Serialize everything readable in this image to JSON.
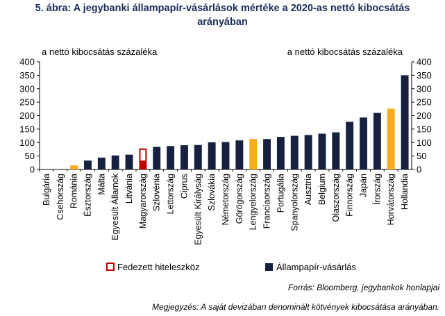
{
  "title_line1": "5. ábra: A jegybanki állampapír-vásárlások mértéke a 2020-as nettó kibocsátás",
  "title_line2": "arányában",
  "source": "Forrás: Bloomberg, jegybankok honlapjai",
  "note": "Megjegyzés: A saját devizában denominált kötvények kibocsátása arányában.",
  "chart_data": {
    "type": "bar",
    "ylabel_left": "a nettó kibocsátás százaléka",
    "ylabel_right": "a nettó kibocsátás százaléka",
    "ylim": [
      0,
      400
    ],
    "yticks": [
      0,
      50,
      100,
      150,
      200,
      250,
      300,
      350,
      400
    ],
    "grid": false,
    "legend_position": "bottom",
    "categories": [
      "Bulgária",
      "Csehország",
      "Románia",
      "Észtország",
      "Málta",
      "Egyesült Államok",
      "Litvánia",
      "Magyarország",
      "Szlovénia",
      "Lettország",
      "Ciprus",
      "Egyesült Királyság",
      "Szlovákia",
      "Németország",
      "Görögország",
      "Lengyelország",
      "Franciaország",
      "Portugália",
      "Spanyolország",
      "Ausztria",
      "Belgium",
      "Olaszország",
      "Finnország",
      "Japán",
      "Írország",
      "Horvátország",
      "Hollandia"
    ],
    "series": [
      {
        "name": "Állampapír-vásárlás",
        "values": [
          0,
          0,
          15,
          33,
          44,
          52,
          55,
          28,
          84,
          87,
          90,
          91,
          101,
          102,
          108,
          113,
          113,
          121,
          125,
          128,
          133,
          138,
          177,
          193,
          210,
          226,
          350
        ]
      },
      {
        "name": "Fedezett hiteleszköz",
        "values": [
          0,
          0,
          0,
          0,
          0,
          0,
          0,
          50,
          0,
          0,
          0,
          0,
          0,
          0,
          0,
          0,
          0,
          0,
          0,
          0,
          0,
          0,
          0,
          0,
          0,
          0,
          0
        ]
      }
    ],
    "highlight_categories": [
      "Románia",
      "Lengyelország",
      "Horvátország"
    ],
    "colors": {
      "bar": "#15213f",
      "highlight": "#f6ae1b",
      "hungary": "#c00000",
      "axis": "#000000"
    }
  }
}
